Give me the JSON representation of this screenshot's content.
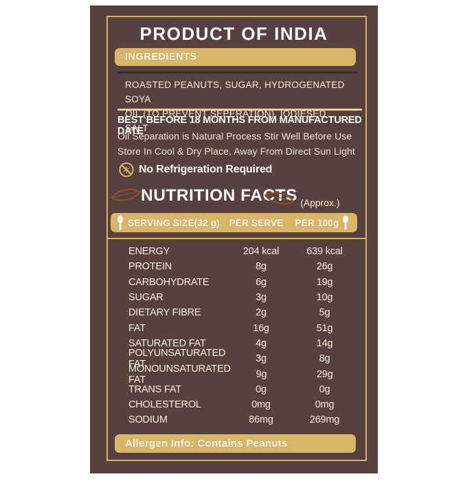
{
  "title": "PRODUCT OF INDIA",
  "ingredients": {
    "heading": "INGREDIENTS",
    "text": "ROASTED PEANUTS, SUGAR, HYDROGENATED SOYA\nOIL (TO PREVENT SEPERATION), IODIESED SALT"
  },
  "storage": {
    "best_before": "BEST BEFORE 18 MONTHS FROM MANUFACTURED DATE",
    "note1": "Oil Separation is Natural Process Stir Well Before Use",
    "note2": "Store In Cool & Dry Place, Away From Direct Sun Light",
    "no_refrigeration": "No Refrigeration Required"
  },
  "nutrition": {
    "heading": "NUTRITION FACTS",
    "approx_note": "(Approx.)",
    "columns": {
      "serving": "SERVING SIZE(32 g)",
      "per_serve": "PER SERVE",
      "per_100g": "PER 100g"
    },
    "rows": [
      [
        "ENERGY",
        "204 kcal",
        "639 kcal"
      ],
      [
        "PROTEIN",
        "8g",
        "26g"
      ],
      [
        "CARBOHYDRATE",
        "6g",
        "19g"
      ],
      [
        "SUGAR",
        "3g",
        "10g"
      ],
      [
        "DIETARY FIBRE",
        "2g",
        "5g"
      ],
      [
        "FAT",
        "16g",
        "51g"
      ],
      [
        "SATURATED FAT",
        "4g",
        "14g"
      ],
      [
        "POLYUNSATURATED FAT",
        "3g",
        "8g"
      ],
      [
        "MONOUNSATURATED FAT",
        "9g",
        "29g"
      ],
      [
        "TRANS FAT",
        "0g",
        "0g"
      ],
      [
        "CHOLESTEROL",
        "0mg",
        "0mg"
      ],
      [
        "SODIUM",
        "86mg",
        "269mg"
      ]
    ]
  },
  "allergen": "Allergen Info: Contains Peanuts",
  "colors": {
    "label_background": "#57413e",
    "gold": "#d9b56a",
    "border_gold": "#d9b468",
    "cream_text": "#f2ebdc",
    "leaf_brown": "#8a4f2e"
  }
}
